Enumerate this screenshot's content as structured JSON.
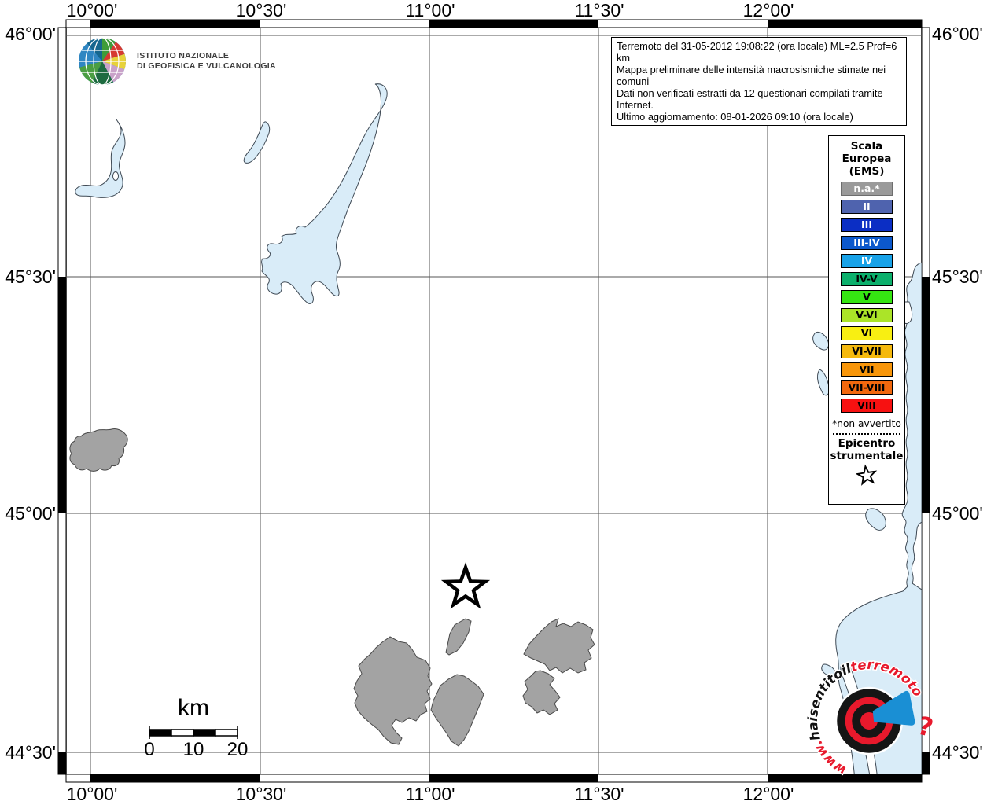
{
  "header": {
    "ingv_logo_lines": [
      "ISTITUTO NAZIONALE",
      "DI GEOFISICA E VULCANOLOGIA"
    ],
    "info_box_lines": [
      "Terremoto del 31-05-2012 19:08:22 (ora locale) ML=2.5 Prof=6 km",
      "Mappa preliminare delle intensità macrosismiche stimate nei comuni",
      "Dati non verificati estratti da 12 questionari compilati tramite Internet.",
      "Ultimo aggiornamento: 08-01-2026 09:10 (ora locale)"
    ]
  },
  "axes": {
    "top": [
      "10°00'",
      "10°30'",
      "11°00'",
      "11°30'",
      "12°00'"
    ],
    "bottom": [
      "10°00'",
      "10°30'",
      "11°00'",
      "11°30'",
      "12°00'"
    ],
    "left": [
      "46°00'",
      "45°30'",
      "45°00'",
      "44°30'"
    ],
    "right": [
      "46°00'",
      "45°30'",
      "45°00'",
      "44°30'"
    ]
  },
  "legend": {
    "title_lines": [
      "Scala",
      "Europea",
      "(EMS)"
    ],
    "items": [
      {
        "label": "n.a.*",
        "color": "#9a9a9a",
        "text": "#ffffff",
        "border": "#6e6e6e"
      },
      {
        "label": "II",
        "color": "#4f63ae",
        "text": "#ffffff",
        "border": "#000000"
      },
      {
        "label": "III",
        "color": "#0b2ec4",
        "text": "#ffffff",
        "border": "#000000"
      },
      {
        "label": "III-IV",
        "color": "#0c58cc",
        "text": "#ffffff",
        "border": "#000000"
      },
      {
        "label": "IV",
        "color": "#18a2e8",
        "text": "#ffffff",
        "border": "#000000"
      },
      {
        "label": "IV-V",
        "color": "#0cb06c",
        "text": "#000000",
        "border": "#000000"
      },
      {
        "label": "V",
        "color": "#35e612",
        "text": "#000000",
        "border": "#000000"
      },
      {
        "label": "V-VI",
        "color": "#abe428",
        "text": "#000000",
        "border": "#000000"
      },
      {
        "label": "VI",
        "color": "#f8ef12",
        "text": "#000000",
        "border": "#000000"
      },
      {
        "label": "VI-VII",
        "color": "#f5b90e",
        "text": "#000000",
        "border": "#000000"
      },
      {
        "label": "VII",
        "color": "#f8960a",
        "text": "#000000",
        "border": "#000000"
      },
      {
        "label": "VII-VIII",
        "color": "#f2680e",
        "text": "#000000",
        "border": "#000000"
      },
      {
        "label": "VIII",
        "color": "#f71111",
        "text": "#000000",
        "border": "#000000"
      }
    ],
    "footnote": "*non avvertito",
    "epicenter_lines": [
      "Epicentro",
      "strumentale"
    ]
  },
  "scalebar": {
    "unit": "km",
    "ticks": [
      "0",
      "10",
      "20"
    ]
  },
  "watermark": {
    "prefix": "www.",
    "mid": "haisentitoil",
    "suffix": "terremoto.it",
    "question_mark": "?"
  },
  "colors": {
    "water": "#d9ecf8",
    "not_felt_area": "#a3a3a3",
    "watermark_red": "#e8192c",
    "watermark_blue": "#1a8fd4"
  }
}
